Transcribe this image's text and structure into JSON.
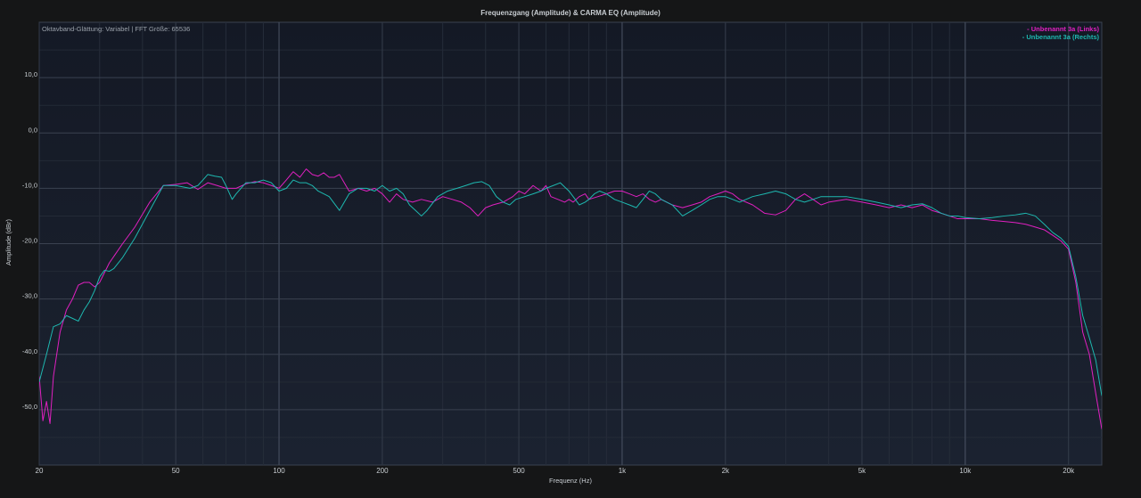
{
  "chart_data": {
    "type": "line",
    "title": "Frequenzgang (Amplitude) & CARMA EQ (Amplitude)",
    "subtitle": "Oktavband-Glättung: Variabel | FFT Größe: 65536",
    "xlabel": "Frequenz (Hz)",
    "ylabel": "Amplitude (dBr)",
    "x_scale": "log",
    "xlim": [
      20,
      25000
    ],
    "ylim": [
      -60,
      20
    ],
    "grid": true,
    "legend_position": "top-right",
    "x_ticks": [
      {
        "value": 20,
        "label": "20"
      },
      {
        "value": 50,
        "label": "50"
      },
      {
        "value": 100,
        "label": "100"
      },
      {
        "value": 200,
        "label": "200"
      },
      {
        "value": 500,
        "label": "500"
      },
      {
        "value": 1000,
        "label": "1k"
      },
      {
        "value": 2000,
        "label": "2k"
      },
      {
        "value": 5000,
        "label": "5k"
      },
      {
        "value": 10000,
        "label": "10k"
      },
      {
        "value": 20000,
        "label": "20k"
      }
    ],
    "y_ticks": [
      {
        "value": 10,
        "label": "10,0"
      },
      {
        "value": 0,
        "label": "0,0"
      },
      {
        "value": -10,
        "label": "-10,0"
      },
      {
        "value": -20,
        "label": "-20,0"
      },
      {
        "value": -30,
        "label": "-30,0"
      },
      {
        "value": -40,
        "label": "-40,0"
      },
      {
        "value": -50,
        "label": "-50,0"
      }
    ],
    "series": [
      {
        "name": "- Unbenannt 3a (Links)",
        "color": "#e020c0",
        "points": [
          [
            20,
            -44
          ],
          [
            20.5,
            -52
          ],
          [
            21,
            -48.5
          ],
          [
            21.5,
            -52.5
          ],
          [
            22,
            -44
          ],
          [
            23,
            -36
          ],
          [
            24,
            -32
          ],
          [
            25,
            -30
          ],
          [
            26,
            -27.5
          ],
          [
            27,
            -27
          ],
          [
            28,
            -27
          ],
          [
            29,
            -27.8
          ],
          [
            30,
            -27
          ],
          [
            32,
            -23.5
          ],
          [
            35,
            -20
          ],
          [
            38,
            -17
          ],
          [
            42,
            -12.5
          ],
          [
            46,
            -9.5
          ],
          [
            50,
            -9.3
          ],
          [
            54,
            -9
          ],
          [
            58,
            -10.2
          ],
          [
            62,
            -9
          ],
          [
            66,
            -9.5
          ],
          [
            70,
            -10
          ],
          [
            75,
            -10
          ],
          [
            80,
            -9.2
          ],
          [
            85,
            -8.8
          ],
          [
            90,
            -9
          ],
          [
            95,
            -9.5
          ],
          [
            100,
            -10
          ],
          [
            105,
            -8.5
          ],
          [
            110,
            -7
          ],
          [
            115,
            -8
          ],
          [
            120,
            -6.5
          ],
          [
            125,
            -7.5
          ],
          [
            130,
            -7.8
          ],
          [
            135,
            -7.2
          ],
          [
            140,
            -8
          ],
          [
            145,
            -8
          ],
          [
            150,
            -7.5
          ],
          [
            160,
            -10.5
          ],
          [
            170,
            -10
          ],
          [
            180,
            -10.5
          ],
          [
            190,
            -10
          ],
          [
            200,
            -11
          ],
          [
            210,
            -12.5
          ],
          [
            220,
            -11
          ],
          [
            230,
            -12
          ],
          [
            245,
            -12.5
          ],
          [
            260,
            -12
          ],
          [
            280,
            -12.5
          ],
          [
            300,
            -11.5
          ],
          [
            320,
            -12
          ],
          [
            340,
            -12.5
          ],
          [
            360,
            -13.5
          ],
          [
            380,
            -15
          ],
          [
            400,
            -13.5
          ],
          [
            420,
            -13
          ],
          [
            450,
            -12.5
          ],
          [
            480,
            -11.5
          ],
          [
            500,
            -10.5
          ],
          [
            520,
            -11
          ],
          [
            550,
            -9.5
          ],
          [
            580,
            -10.5
          ],
          [
            600,
            -9.5
          ],
          [
            620,
            -11.5
          ],
          [
            650,
            -12
          ],
          [
            680,
            -12.5
          ],
          [
            700,
            -12
          ],
          [
            720,
            -12.5
          ],
          [
            750,
            -11.5
          ],
          [
            780,
            -11
          ],
          [
            800,
            -12
          ],
          [
            850,
            -11.5
          ],
          [
            900,
            -11
          ],
          [
            950,
            -10.5
          ],
          [
            1000,
            -10.5
          ],
          [
            1050,
            -11
          ],
          [
            1100,
            -11.5
          ],
          [
            1150,
            -11
          ],
          [
            1200,
            -12
          ],
          [
            1250,
            -12.5
          ],
          [
            1300,
            -12
          ],
          [
            1400,
            -13
          ],
          [
            1500,
            -13.5
          ],
          [
            1600,
            -13
          ],
          [
            1700,
            -12.5
          ],
          [
            1800,
            -11.5
          ],
          [
            1900,
            -11
          ],
          [
            2000,
            -10.5
          ],
          [
            2100,
            -11
          ],
          [
            2200,
            -12
          ],
          [
            2400,
            -13
          ],
          [
            2600,
            -14.5
          ],
          [
            2800,
            -14.8
          ],
          [
            3000,
            -14
          ],
          [
            3200,
            -12
          ],
          [
            3400,
            -11
          ],
          [
            3600,
            -12
          ],
          [
            3800,
            -13
          ],
          [
            4000,
            -12.5
          ],
          [
            4500,
            -12
          ],
          [
            5000,
            -12.5
          ],
          [
            5500,
            -13
          ],
          [
            6000,
            -13.5
          ],
          [
            6500,
            -13
          ],
          [
            7000,
            -13.5
          ],
          [
            7500,
            -13
          ],
          [
            8000,
            -14
          ],
          [
            8500,
            -14.5
          ],
          [
            9000,
            -15
          ],
          [
            9500,
            -15.5
          ],
          [
            10000,
            -15.5
          ],
          [
            11000,
            -15.5
          ],
          [
            12000,
            -15.8
          ],
          [
            13000,
            -16
          ],
          [
            14000,
            -16.2
          ],
          [
            15000,
            -16.5
          ],
          [
            16000,
            -17
          ],
          [
            17000,
            -17.5
          ],
          [
            18000,
            -18.5
          ],
          [
            19000,
            -19.5
          ],
          [
            20000,
            -21
          ],
          [
            21000,
            -27
          ],
          [
            22000,
            -36
          ],
          [
            23000,
            -40
          ],
          [
            24000,
            -47
          ],
          [
            25000,
            -53.5
          ]
        ]
      },
      {
        "name": "- Unbenannt 3a (Rechts)",
        "color": "#1eb8b0",
        "points": [
          [
            20,
            -45
          ],
          [
            21,
            -40
          ],
          [
            22,
            -35
          ],
          [
            23,
            -34.5
          ],
          [
            24,
            -33
          ],
          [
            25,
            -33.5
          ],
          [
            26,
            -34
          ],
          [
            27,
            -32
          ],
          [
            28,
            -30.5
          ],
          [
            29,
            -28.5
          ],
          [
            30,
            -26
          ],
          [
            31,
            -24.8
          ],
          [
            32,
            -25
          ],
          [
            33,
            -24.5
          ],
          [
            35,
            -22.5
          ],
          [
            38,
            -19
          ],
          [
            42,
            -14
          ],
          [
            46,
            -9.5
          ],
          [
            50,
            -9.5
          ],
          [
            55,
            -10
          ],
          [
            58,
            -9.5
          ],
          [
            60,
            -8.5
          ],
          [
            62,
            -7.5
          ],
          [
            65,
            -7.8
          ],
          [
            68,
            -8
          ],
          [
            70,
            -9.5
          ],
          [
            73,
            -12
          ],
          [
            75,
            -11
          ],
          [
            80,
            -9
          ],
          [
            85,
            -9
          ],
          [
            90,
            -8.5
          ],
          [
            95,
            -9
          ],
          [
            100,
            -10.5
          ],
          [
            105,
            -10
          ],
          [
            110,
            -8.5
          ],
          [
            115,
            -9
          ],
          [
            120,
            -9
          ],
          [
            125,
            -9.5
          ],
          [
            130,
            -10.5
          ],
          [
            135,
            -11
          ],
          [
            140,
            -11.5
          ],
          [
            150,
            -14
          ],
          [
            160,
            -11
          ],
          [
            170,
            -10
          ],
          [
            180,
            -10
          ],
          [
            190,
            -10.5
          ],
          [
            200,
            -9.5
          ],
          [
            210,
            -10.5
          ],
          [
            220,
            -10
          ],
          [
            230,
            -11
          ],
          [
            240,
            -13
          ],
          [
            250,
            -14
          ],
          [
            260,
            -15
          ],
          [
            270,
            -14
          ],
          [
            290,
            -11.5
          ],
          [
            310,
            -10.5
          ],
          [
            330,
            -10
          ],
          [
            350,
            -9.5
          ],
          [
            370,
            -9
          ],
          [
            390,
            -8.8
          ],
          [
            410,
            -9.5
          ],
          [
            430,
            -11.5
          ],
          [
            450,
            -12.5
          ],
          [
            470,
            -13
          ],
          [
            490,
            -12
          ],
          [
            520,
            -11.5
          ],
          [
            550,
            -11
          ],
          [
            580,
            -10.5
          ],
          [
            600,
            -10
          ],
          [
            630,
            -9.5
          ],
          [
            660,
            -9
          ],
          [
            700,
            -10.5
          ],
          [
            730,
            -12
          ],
          [
            750,
            -13
          ],
          [
            780,
            -12.5
          ],
          [
            800,
            -12
          ],
          [
            830,
            -11
          ],
          [
            860,
            -10.5
          ],
          [
            900,
            -11
          ],
          [
            950,
            -12
          ],
          [
            1000,
            -12.5
          ],
          [
            1050,
            -13
          ],
          [
            1100,
            -13.5
          ],
          [
            1150,
            -12
          ],
          [
            1200,
            -10.5
          ],
          [
            1250,
            -11
          ],
          [
            1300,
            -12
          ],
          [
            1400,
            -13
          ],
          [
            1500,
            -15
          ],
          [
            1600,
            -14
          ],
          [
            1700,
            -13
          ],
          [
            1800,
            -12
          ],
          [
            1900,
            -11.5
          ],
          [
            2000,
            -11.5
          ],
          [
            2100,
            -12
          ],
          [
            2200,
            -12.5
          ],
          [
            2400,
            -11.5
          ],
          [
            2600,
            -11
          ],
          [
            2800,
            -10.5
          ],
          [
            3000,
            -11
          ],
          [
            3200,
            -12
          ],
          [
            3400,
            -12.5
          ],
          [
            3600,
            -12
          ],
          [
            3800,
            -11.5
          ],
          [
            4000,
            -11.5
          ],
          [
            4500,
            -11.5
          ],
          [
            5000,
            -12
          ],
          [
            5500,
            -12.5
          ],
          [
            6000,
            -13
          ],
          [
            6500,
            -13.5
          ],
          [
            7000,
            -13
          ],
          [
            7500,
            -12.8
          ],
          [
            8000,
            -13.5
          ],
          [
            8500,
            -14.5
          ],
          [
            9000,
            -15
          ],
          [
            9500,
            -15
          ],
          [
            10000,
            -15.3
          ],
          [
            11000,
            -15.5
          ],
          [
            12000,
            -15.3
          ],
          [
            13000,
            -15
          ],
          [
            14000,
            -14.8
          ],
          [
            15000,
            -14.5
          ],
          [
            16000,
            -15
          ],
          [
            17000,
            -16.5
          ],
          [
            18000,
            -18
          ],
          [
            19000,
            -19
          ],
          [
            20000,
            -20.5
          ],
          [
            21000,
            -26
          ],
          [
            22000,
            -33
          ],
          [
            23000,
            -37
          ],
          [
            24000,
            -41
          ],
          [
            25000,
            -47.5
          ]
        ]
      }
    ]
  }
}
